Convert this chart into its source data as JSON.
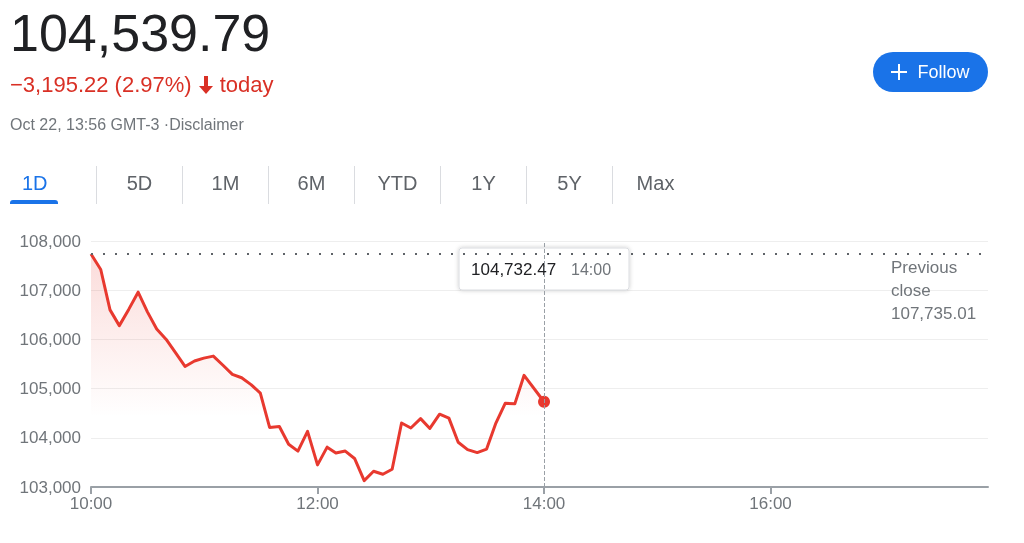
{
  "chart_data": {
    "type": "area",
    "title": "104,539.79",
    "subtitle": "−3,195.22 (2.97%) today",
    "annotations": [
      "Oct 22, 13:56 GMT-3 ·Disclaimer",
      "Follow",
      "1D",
      "5D",
      "1M",
      "6M",
      "YTD",
      "1Y",
      "5Y",
      "Max",
      "104,732.47",
      "14:00"
    ],
    "x": [
      10.0,
      10.086,
      10.168,
      10.25,
      10.333,
      10.416,
      10.498,
      10.58,
      10.664,
      10.749,
      10.83,
      10.914,
      10.996,
      11.08,
      11.163,
      11.248,
      11.33,
      11.413,
      11.495,
      11.577,
      11.663,
      11.745,
      11.827,
      11.912,
      12.0,
      12.085,
      12.162,
      12.245,
      12.327,
      12.412,
      12.495,
      12.577,
      12.659,
      12.742,
      12.824,
      12.91,
      12.992,
      13.078,
      13.16,
      13.242,
      13.325,
      13.41,
      13.493,
      13.575,
      13.657,
      13.742,
      13.824,
      14.0
    ],
    "series": [
      {
        "color": "#e8392f",
        "values": [
          107735,
          107420,
          106600,
          106280,
          106610,
          106960,
          106560,
          106210,
          106000,
          105720,
          105450,
          105560,
          105620,
          105660,
          105480,
          105290,
          105220,
          105080,
          104910,
          104210,
          104230,
          103870,
          103730,
          104130,
          103450,
          103810,
          103690,
          103730,
          103580,
          103130,
          103320,
          103260,
          103360,
          104300,
          104200,
          104390,
          104190,
          104480,
          104400,
          103910,
          103760,
          103700,
          103770,
          104300,
          104700,
          104690,
          105270,
          104732.47
        ]
      }
    ],
    "xlim": [
      10,
      17.92
    ],
    "ylim": [
      103000,
      108000
    ],
    "xticks": [
      {
        "value": 10,
        "label": "10:00"
      },
      {
        "value": 12,
        "label": "12:00"
      },
      {
        "value": 14,
        "label": "14:00"
      },
      {
        "value": 16,
        "label": "16:00"
      }
    ],
    "yticks": [
      {
        "value": 103000,
        "label": "103,000"
      },
      {
        "value": 104000,
        "label": "104,000"
      },
      {
        "value": 105000,
        "label": "105,000"
      },
      {
        "value": 106000,
        "label": "106,000"
      },
      {
        "value": 107000,
        "label": "107,000"
      },
      {
        "value": 108000,
        "label": "108,000"
      }
    ],
    "ref_lines": [
      {
        "axis": "y",
        "value": 107735.01,
        "label": "Previous close 107,735.01",
        "line_style": "dotted",
        "color": "#5f6368"
      },
      {
        "axis": "x",
        "value": 14,
        "line_style": "dashed",
        "color": "#9aa0a6"
      }
    ],
    "grid": "y",
    "marker": "none",
    "line_style": "solid"
  }
}
